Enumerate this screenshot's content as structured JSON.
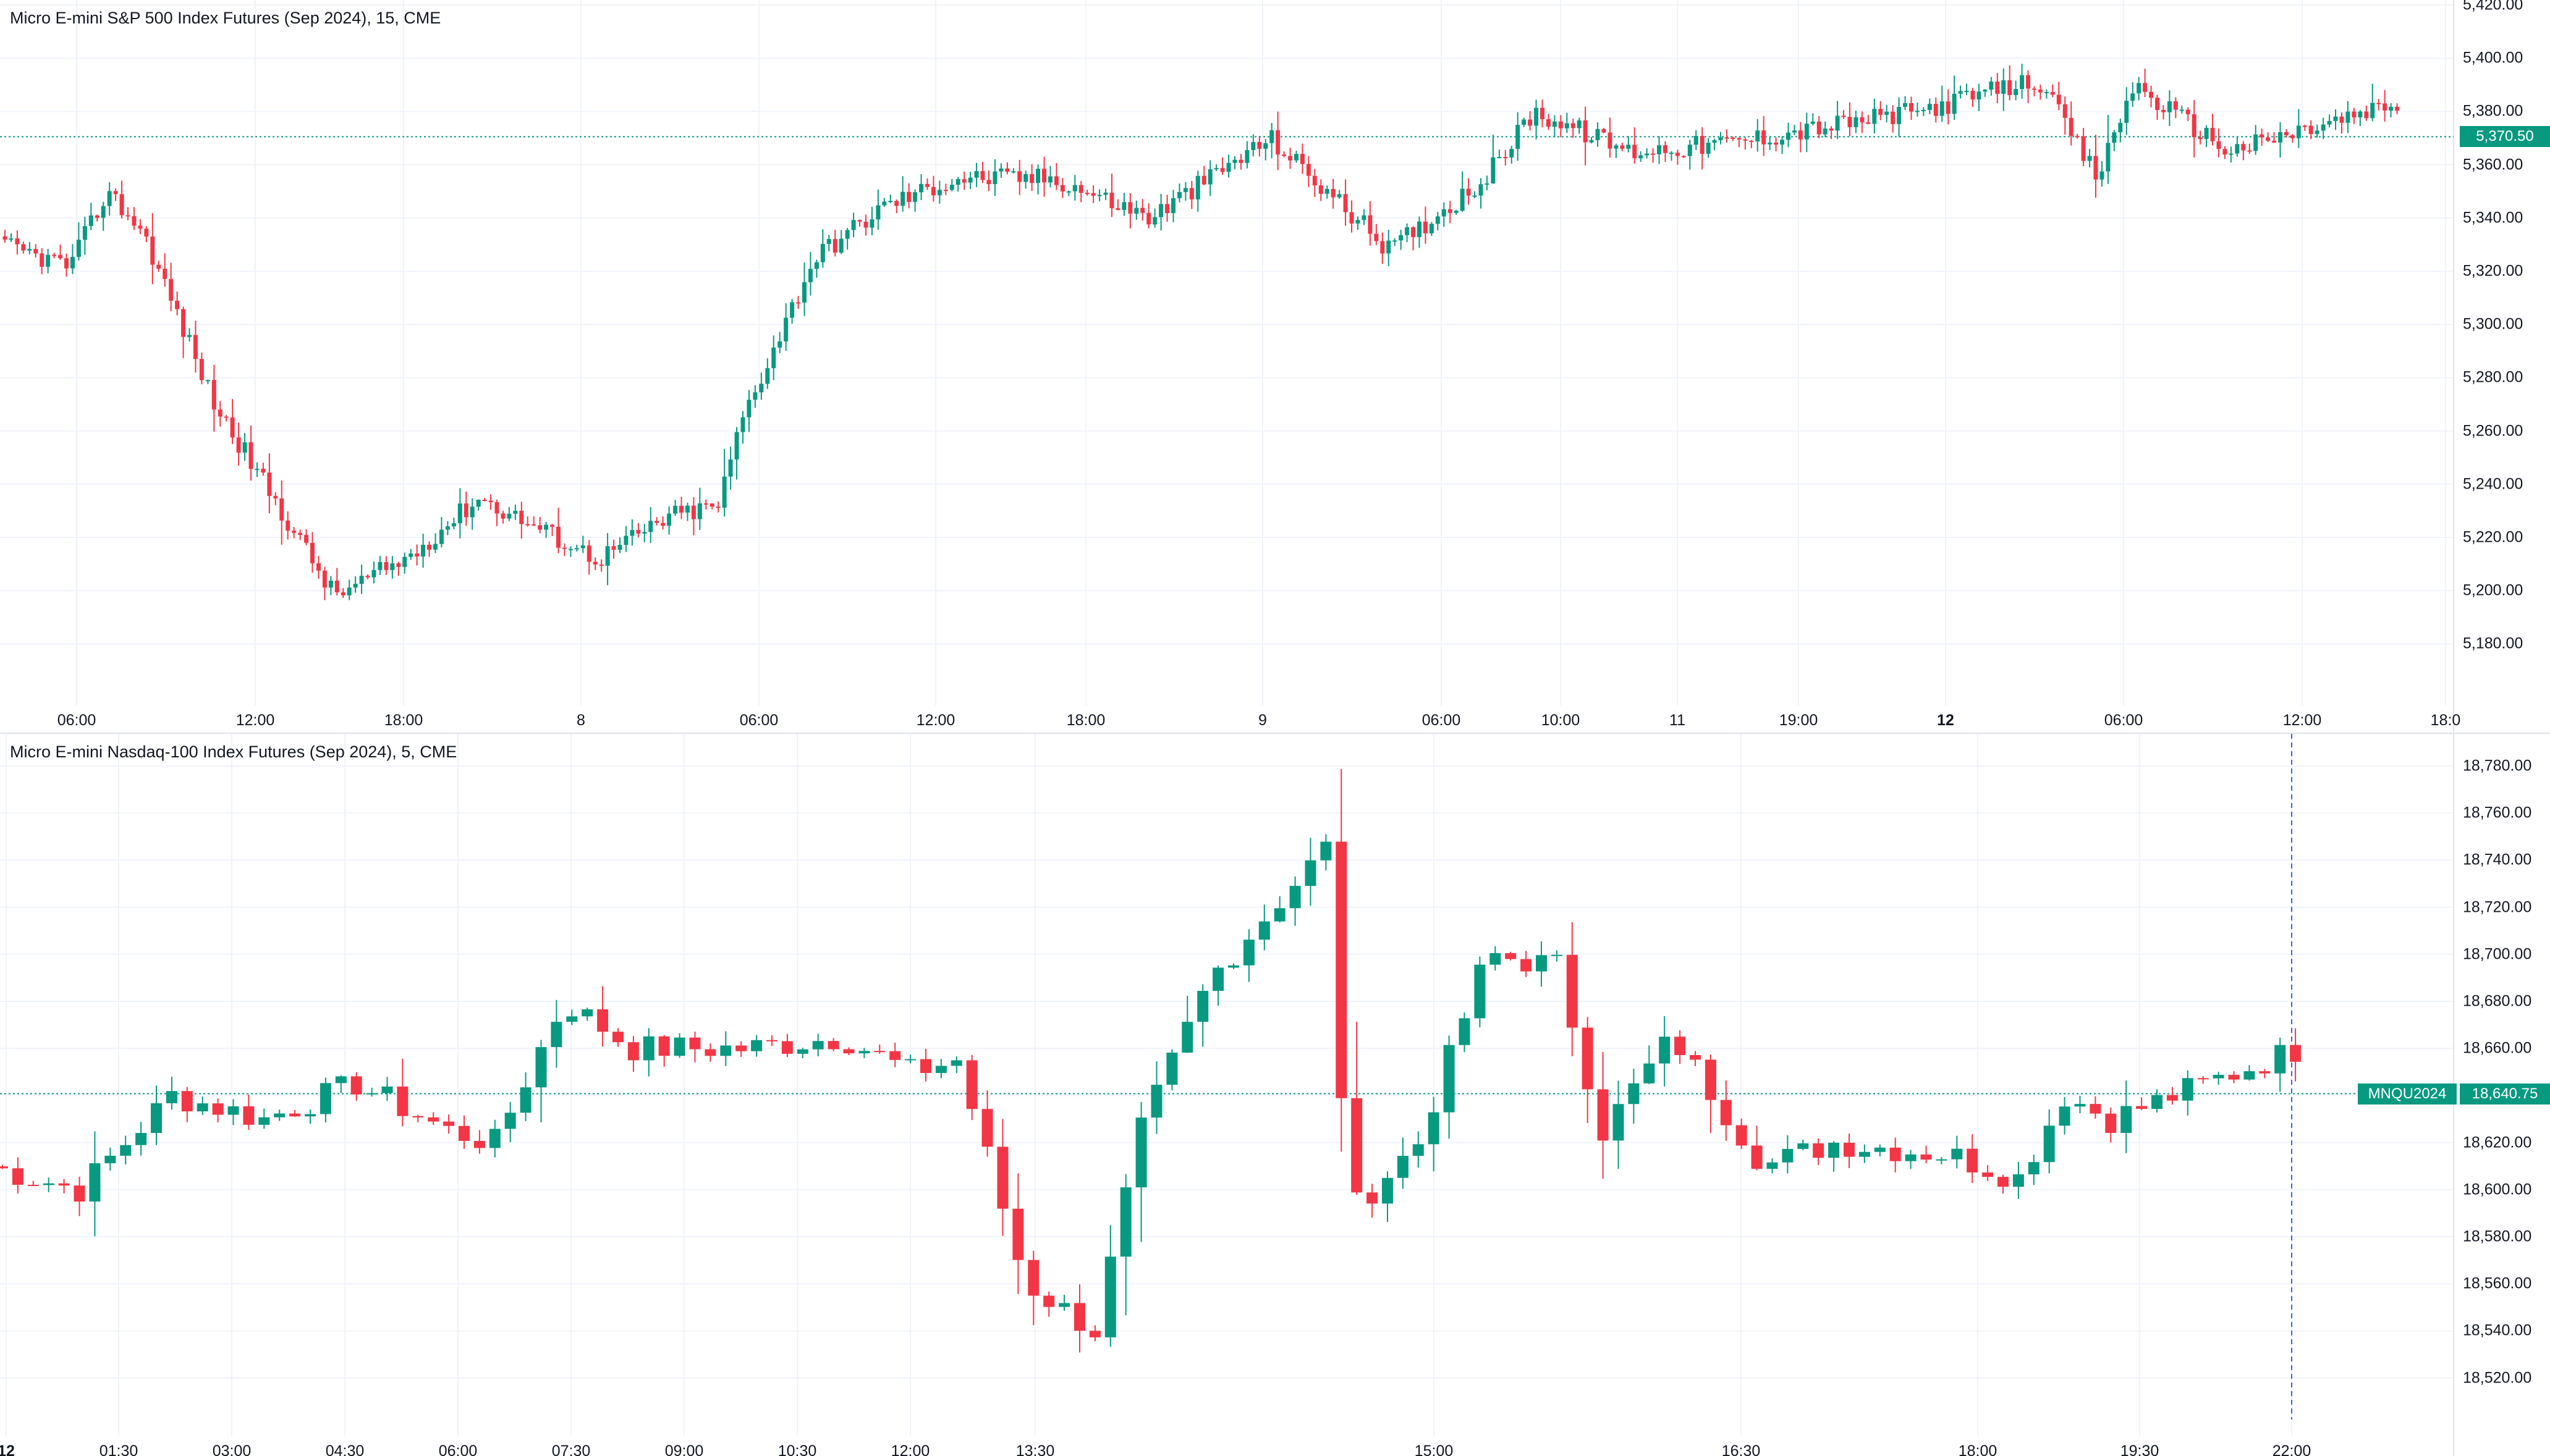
{
  "colors": {
    "up": "#089981",
    "down": "#f23645",
    "grid": "#f0f3fa",
    "text": "#131722",
    "last_price": "#089981",
    "crosshair": "#2962ff"
  },
  "top_chart": {
    "title": "Micro E-mini S&P 500 Index Futures (Sep 2024), 15, CME",
    "last_price_label": "5,370.50",
    "last_price": 5370.5,
    "y_axis_labels": [
      "5,420.00",
      "5,400.00",
      "5,380.00",
      "5,360.00",
      "5,340.00",
      "5,320.00",
      "5,300.00",
      "5,280.00",
      "5,260.00",
      "5,240.00",
      "5,220.00",
      "5,200.00",
      "5,180.00"
    ],
    "x_axis_labels": [
      {
        "text": "06:00",
        "bold": false
      },
      {
        "text": "12:00",
        "bold": false
      },
      {
        "text": "18:00",
        "bold": false
      },
      {
        "text": "8",
        "bold": false
      },
      {
        "text": "06:00",
        "bold": false
      },
      {
        "text": "12:00",
        "bold": false
      },
      {
        "text": "18:00",
        "bold": false
      },
      {
        "text": "9",
        "bold": false
      },
      {
        "text": "06:00",
        "bold": false
      },
      {
        "text": "10:00",
        "bold": false
      },
      {
        "text": "11",
        "bold": false
      },
      {
        "text": "19:00",
        "bold": false
      },
      {
        "text": "12",
        "bold": true
      },
      {
        "text": "06:00",
        "bold": false
      },
      {
        "text": "12:00",
        "bold": false
      },
      {
        "text": "18:0",
        "bold": false
      }
    ]
  },
  "bottom_chart": {
    "title": "Micro E-mini Nasdaq-100 Index Futures (Sep 2024), 5, CME",
    "symbol_label": "MNQU2024",
    "last_price_label": "18,640.75",
    "last_price": 18640.75,
    "y_axis_labels": [
      "18,780.00",
      "18,760.00",
      "18,740.00",
      "18,720.00",
      "18,700.00",
      "18,680.00",
      "18,660.00",
      "18,640.00",
      "18,620.00",
      "18,600.00",
      "18,580.00",
      "18,560.00",
      "18,540.00",
      "18,520.00"
    ],
    "x_axis_labels": [
      {
        "text": "12",
        "bold": true
      },
      {
        "text": "01:30",
        "bold": false
      },
      {
        "text": "03:00",
        "bold": false
      },
      {
        "text": "04:30",
        "bold": false
      },
      {
        "text": "06:00",
        "bold": false
      },
      {
        "text": "07:30",
        "bold": false
      },
      {
        "text": "09:00",
        "bold": false
      },
      {
        "text": "10:30",
        "bold": false
      },
      {
        "text": "12:00",
        "bold": false
      },
      {
        "text": "13:30",
        "bold": false
      },
      {
        "text": "15:00",
        "bold": false
      },
      {
        "text": "16:30",
        "bold": false
      },
      {
        "text": "18:00",
        "bold": false
      },
      {
        "text": "19:30",
        "bold": false
      },
      {
        "text": "22:00",
        "bold": false
      }
    ]
  }
}
